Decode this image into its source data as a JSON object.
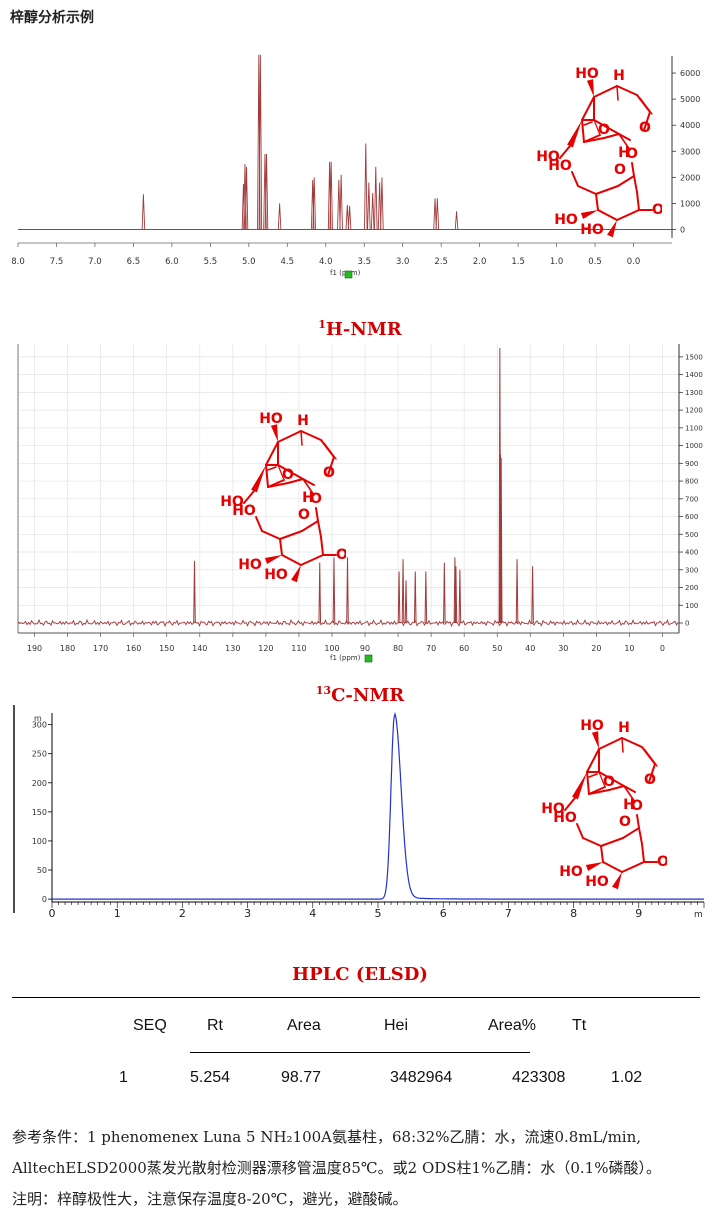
{
  "page": {
    "title": "梓醇分析示例"
  },
  "structure_labels": {
    "ho": "HO",
    "h": "H",
    "o": "O",
    "oh": "OH"
  },
  "chart_data": [
    {
      "type": "line",
      "caption_sup": "1",
      "caption": "H-NMR",
      "xlabel": "f1 (ppm)",
      "xlim": [
        8.0,
        -0.5
      ],
      "ylim": [
        0,
        6500
      ],
      "x_ticks": [
        "8.0",
        "7.5",
        "7.0",
        "6.5",
        "6.0",
        "5.5",
        "5.0",
        "4.5",
        "4.0",
        "3.5",
        "3.0",
        "2.5",
        "2.0",
        "1.5",
        "1.0",
        "0.5",
        "0.0"
      ],
      "y_ticks": [
        "6000",
        "5000",
        "4000",
        "3000",
        "2000",
        "1000",
        "0"
      ],
      "color": "#a23b3b",
      "peaks": [
        {
          "x": 6.37,
          "y": 1350
        },
        {
          "x": 5.07,
          "y": 1750
        },
        {
          "x": 5.05,
          "y": 2500
        },
        {
          "x": 5.03,
          "y": 2400
        },
        {
          "x": 4.87,
          "y": 6700
        },
        {
          "x": 4.85,
          "y": 6700
        },
        {
          "x": 4.79,
          "y": 2900
        },
        {
          "x": 4.77,
          "y": 2900
        },
        {
          "x": 4.6,
          "y": 1000
        },
        {
          "x": 4.17,
          "y": 1900
        },
        {
          "x": 4.15,
          "y": 2000
        },
        {
          "x": 3.95,
          "y": 2600
        },
        {
          "x": 3.93,
          "y": 2600
        },
        {
          "x": 3.83,
          "y": 1900
        },
        {
          "x": 3.8,
          "y": 2100
        },
        {
          "x": 3.72,
          "y": 950
        },
        {
          "x": 3.69,
          "y": 900
        },
        {
          "x": 3.48,
          "y": 3300
        },
        {
          "x": 3.44,
          "y": 1800
        },
        {
          "x": 3.39,
          "y": 1400
        },
        {
          "x": 3.35,
          "y": 2400
        },
        {
          "x": 3.3,
          "y": 1800
        },
        {
          "x": 3.27,
          "y": 2000
        },
        {
          "x": 2.58,
          "y": 1200
        },
        {
          "x": 2.55,
          "y": 1200
        },
        {
          "x": 2.3,
          "y": 700
        }
      ]
    },
    {
      "type": "line",
      "caption_sup": "13",
      "caption": "C-NMR",
      "xlabel": "f1 (ppm)",
      "xlim": [
        195,
        -5
      ],
      "ylim": [
        0,
        1550
      ],
      "x_ticks": [
        "190",
        "180",
        "170",
        "160",
        "150",
        "140",
        "130",
        "120",
        "110",
        "100",
        "90",
        "80",
        "70",
        "60",
        "50",
        "40",
        "30",
        "20",
        "10",
        "0"
      ],
      "y_ticks": [
        "1500",
        "1400",
        "1300",
        "1200",
        "1100",
        "1000",
        "900",
        "800",
        "700",
        "600",
        "500",
        "400",
        "300",
        "200",
        "100",
        "0"
      ],
      "color": "#a23b3b",
      "peaks": [
        {
          "x": 141.6,
          "y": 350
        },
        {
          "x": 103.7,
          "y": 340
        },
        {
          "x": 99.4,
          "y": 370
        },
        {
          "x": 95.3,
          "y": 370
        },
        {
          "x": 79.7,
          "y": 290
        },
        {
          "x": 78.5,
          "y": 360
        },
        {
          "x": 77.6,
          "y": 240
        },
        {
          "x": 74.8,
          "y": 290
        },
        {
          "x": 71.6,
          "y": 290
        },
        {
          "x": 66.0,
          "y": 340
        },
        {
          "x": 62.8,
          "y": 370
        },
        {
          "x": 62.5,
          "y": 320
        },
        {
          "x": 61.3,
          "y": 300
        },
        {
          "x": 49.2,
          "y": 1550
        },
        {
          "x": 49.0,
          "y": 950
        },
        {
          "x": 48.8,
          "y": 930
        },
        {
          "x": 44.0,
          "y": 360
        },
        {
          "x": 39.3,
          "y": 320
        }
      ]
    },
    {
      "type": "line",
      "xlim": [
        0,
        10
      ],
      "ylim": [
        -5,
        320
      ],
      "x_ticks": [
        "0",
        "1",
        "2",
        "3",
        "4",
        "5",
        "6",
        "7",
        "8",
        "9"
      ],
      "y_ticks": [
        "300",
        "250",
        "200",
        "150",
        "100",
        "50",
        "0"
      ],
      "x_unit": "m",
      "y_unit": "m",
      "color": "#2233cc",
      "peak": {
        "rt": 5.254,
        "height": 315,
        "width": 0.16
      }
    }
  ],
  "hplc": {
    "title": "HPLC (ELSD)",
    "headers": [
      "SEQ",
      "Rt",
      "Area",
      "Hei",
      "Area%",
      "Tt"
    ],
    "rows": [
      [
        "1",
        "5.254",
        "98.77",
        "3482964",
        "423308",
        "1.02"
      ]
    ]
  },
  "notes": {
    "line1": "参考条件：1 phenomenex Luna 5 NH₂100A氨基柱，68:32%乙腈：水，流速0.8mL/min,",
    "line2": "AlltechELSD2000蒸发光散射检测器漂移管温度85℃。或2 ODS柱1%乙腈：水（0.1%磷酸）。",
    "line3": "注明：梓醇极性大，注意保存温度8-20℃，避光，避酸碱。"
  }
}
